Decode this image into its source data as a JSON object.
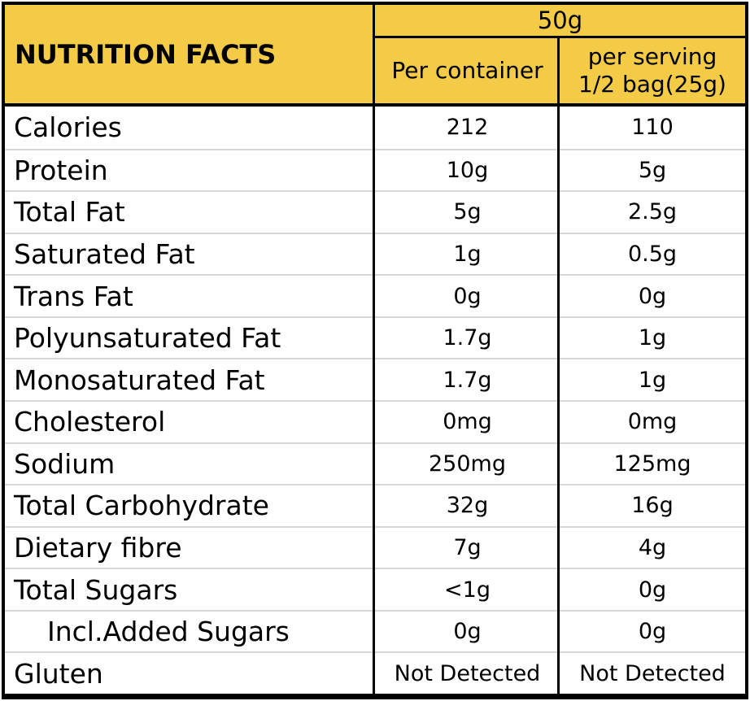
{
  "colors": {
    "header_bg": "#F4CB46",
    "border": "#000000",
    "row_divider": "#D8D8D8",
    "background": "#FFFFFF",
    "text": "#000000"
  },
  "header": {
    "title": "NUTRITION FACTS",
    "total_weight": "50g",
    "col_per_container": "Per container",
    "col_per_serving_line1": "per serving",
    "col_per_serving_line2": "1/2 bag(25g)"
  },
  "rows": [
    {
      "label": "Calories",
      "per_container": "212",
      "per_serving": "110",
      "indent": false
    },
    {
      "label": "Protein",
      "per_container": "10g",
      "per_serving": "5g",
      "indent": false
    },
    {
      "label": "Total Fat",
      "per_container": "5g",
      "per_serving": "2.5g",
      "indent": false
    },
    {
      "label": "Saturated Fat",
      "per_container": "1g",
      "per_serving": "0.5g",
      "indent": false
    },
    {
      "label": "Trans Fat",
      "per_container": "0g",
      "per_serving": "0g",
      "indent": false
    },
    {
      "label": "Polyunsaturated Fat",
      "per_container": "1.7g",
      "per_serving": "1g",
      "indent": false
    },
    {
      "label": "Monosaturated Fat",
      "per_container": "1.7g",
      "per_serving": "1g",
      "indent": false
    },
    {
      "label": "Cholesterol",
      "per_container": "0mg",
      "per_serving": "0mg",
      "indent": false
    },
    {
      "label": "Sodium",
      "per_container": "250mg",
      "per_serving": "125mg",
      "indent": false
    },
    {
      "label": "Total Carbohydrate",
      "per_container": "32g",
      "per_serving": "16g",
      "indent": false
    },
    {
      "label": "Dietary fibre",
      "per_container": "7g",
      "per_serving": "4g",
      "indent": false
    },
    {
      "label": "Total Sugars",
      "per_container": "<1g",
      "per_serving": "0g",
      "indent": false
    },
    {
      "label": "Incl.Added Sugars",
      "per_container": "0g",
      "per_serving": "0g",
      "indent": true
    },
    {
      "label": "Gluten",
      "per_container": "Not Detected",
      "per_serving": "Not Detected",
      "indent": false
    }
  ]
}
